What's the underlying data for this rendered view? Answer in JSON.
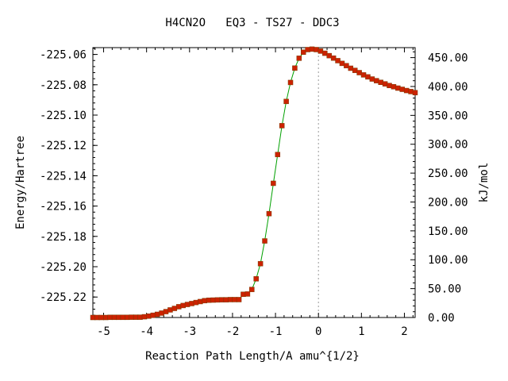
{
  "chart_data": {
    "type": "line",
    "title": "H4CN2O   EQ3 - TS27 - DDC3",
    "xlabel": "Reaction Path Length/A amu^{1/2}",
    "ylabel": "Energy/Hartree",
    "y2label": "kJ/mol",
    "xlim": [
      -5.25,
      2.25
    ],
    "ylim": [
      -225.2335,
      -225.0555
    ],
    "y2lim": [
      0.0,
      467.3
    ],
    "grid": false,
    "legend": "none",
    "x_ticks": [
      "-5",
      "-4",
      "-3",
      "-2",
      "-1",
      "0",
      "1",
      "2"
    ],
    "y_ticks": [
      "-225.06",
      "-225.08",
      "-225.10",
      "-225.12",
      "-225.14",
      "-225.16",
      "-225.18",
      "-225.20",
      "-225.22"
    ],
    "y2_ticks": [
      "0.00",
      "50.00",
      "100.00",
      "150.00",
      "200.00",
      "250.00",
      "300.00",
      "350.00",
      "400.00",
      "450.00"
    ],
    "reference_line_x": 0,
    "series": [
      {
        "line_color": "#00a000",
        "marker_color": "#cc2200",
        "x": [
          -5.25,
          -5.15,
          -5.05,
          -4.95,
          -4.85,
          -4.75,
          -4.65,
          -4.55,
          -4.45,
          -4.35,
          -4.25,
          -4.15,
          -4.05,
          -3.95,
          -3.85,
          -3.75,
          -3.65,
          -3.55,
          -3.45,
          -3.35,
          -3.25,
          -3.15,
          -3.05,
          -2.95,
          -2.85,
          -2.75,
          -2.65,
          -2.55,
          -2.45,
          -2.35,
          -2.25,
          -2.15,
          -2.05,
          -1.95,
          -1.85,
          -1.75,
          -1.65,
          -1.55,
          -1.45,
          -1.35,
          -1.25,
          -1.15,
          -1.05,
          -0.95,
          -0.85,
          -0.75,
          -0.65,
          -0.55,
          -0.45,
          -0.35,
          -0.25,
          -0.15,
          -0.05,
          0.05,
          0.15,
          0.25,
          0.35,
          0.45,
          0.55,
          0.65,
          0.75,
          0.85,
          0.95,
          1.05,
          1.15,
          1.25,
          1.35,
          1.45,
          1.55,
          1.65,
          1.75,
          1.85,
          1.95,
          2.05,
          2.15,
          2.25
        ],
        "y": [
          -225.2335,
          -225.2335,
          -225.2335,
          -225.2335,
          -225.2334,
          -225.2334,
          -225.2334,
          -225.2334,
          -225.2334,
          -225.2333,
          -225.2333,
          -225.2333,
          -225.233,
          -225.2326,
          -225.232,
          -225.2314,
          -225.2306,
          -225.2296,
          -225.2285,
          -225.2275,
          -225.2264,
          -225.2256,
          -225.2249,
          -225.2243,
          -225.2236,
          -225.223,
          -225.2224,
          -225.2221,
          -225.222,
          -225.2219,
          -225.2218,
          -225.2218,
          -225.2217,
          -225.2217,
          -225.2217,
          -225.2182,
          -225.218,
          -225.215,
          -225.208,
          -225.198,
          -225.183,
          -225.165,
          -225.145,
          -225.126,
          -225.107,
          -225.091,
          -225.0785,
          -225.069,
          -225.0625,
          -225.0585,
          -225.0568,
          -225.0565,
          -225.0568,
          -225.0578,
          -225.0592,
          -225.0608,
          -225.0624,
          -225.0641,
          -225.0659,
          -225.0674,
          -225.0691,
          -225.0705,
          -225.072,
          -225.0735,
          -225.0748,
          -225.0762,
          -225.0773,
          -225.0784,
          -225.0794,
          -225.0805,
          -225.0813,
          -225.0822,
          -225.083,
          -225.0838,
          -225.0845,
          -225.0852
        ]
      }
    ]
  }
}
